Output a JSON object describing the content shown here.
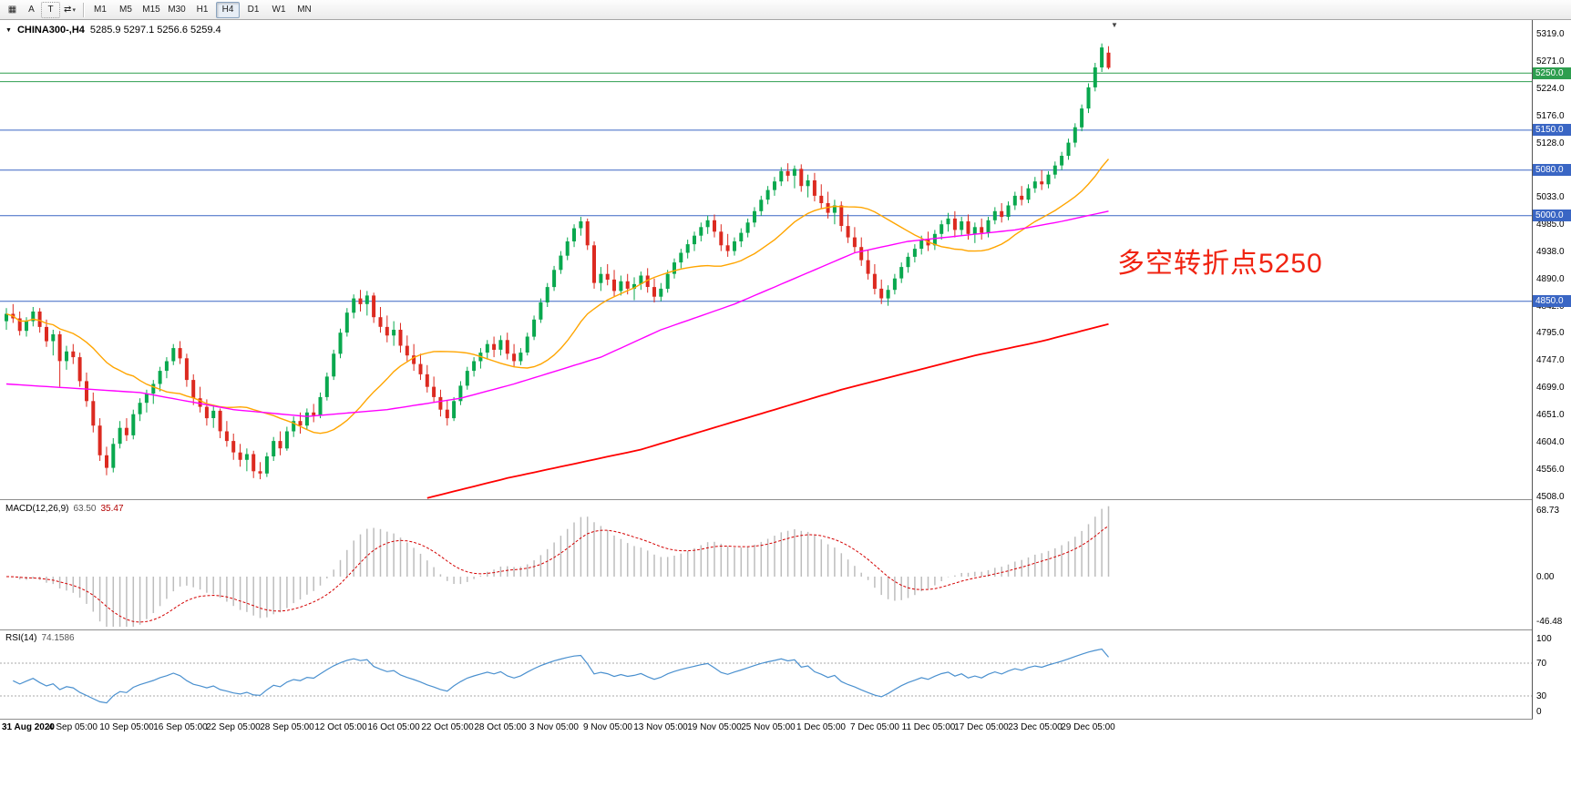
{
  "toolbar": {
    "window_button_icon": "▦",
    "a_label": "A",
    "t_label": "T",
    "cycle_icon": "⇄",
    "dropdown_icon": "▾",
    "timeframes": [
      "M1",
      "M5",
      "M15",
      "M30",
      "H1",
      "H4",
      "D1",
      "W1",
      "MN"
    ],
    "active_timeframe": "H4"
  },
  "chart": {
    "symbol_label": "CHINA300-,H4",
    "ohlc_values": "5285.9 5297.1 5256.6 5259.4",
    "shift_marker": "▼",
    "annotation": {
      "text": "多空转折点5250",
      "color": "#f02311"
    },
    "colors": {
      "up": "#09a84e",
      "down": "#dc2a20"
    },
    "levels": [
      {
        "price": 5250,
        "color": "#2e9e4f"
      },
      {
        "price": 5235,
        "color": "#2e9e4f"
      },
      {
        "price": 5150,
        "color": "#3a66c4"
      },
      {
        "price": 5080,
        "color": "#3a66c4"
      },
      {
        "price": 5000,
        "color": "#3a66c4"
      },
      {
        "price": 4850,
        "color": "#3a66c4"
      }
    ],
    "price_axis": {
      "ticks": [
        "5319.0",
        "5271.0",
        "5224.0",
        "5176.0",
        "5128.0",
        "5080.0",
        "5033.0",
        "4985.0",
        "4938.0",
        "4890.0",
        "4842.0",
        "4795.0",
        "4747.0",
        "4699.0",
        "4651.0",
        "4604.0",
        "4556.0",
        "4508.0"
      ],
      "badges": [
        {
          "text": "5250.0",
          "price": 5250,
          "bg": "#2e9e4f"
        },
        {
          "text": "5150.0",
          "price": 5150,
          "bg": "#3a66c4"
        },
        {
          "text": "5080.0",
          "price": 5080,
          "bg": "#3a66c4"
        },
        {
          "text": "5000.0",
          "price": 5000,
          "bg": "#3a66c4"
        },
        {
          "text": "4850.0",
          "price": 4850,
          "bg": "#3a66c4"
        }
      ]
    },
    "ma": {
      "fast": {
        "period": 20,
        "color": "#ffa500"
      },
      "mid": {
        "color": "#ff00ff",
        "points": [
          [
            0,
            4705
          ],
          [
            20,
            4690
          ],
          [
            34,
            4660
          ],
          [
            45,
            4648
          ],
          [
            57,
            4660
          ],
          [
            68,
            4680
          ],
          [
            76,
            4705
          ],
          [
            89,
            4752
          ],
          [
            98,
            4800
          ],
          [
            109,
            4845
          ],
          [
            119,
            4895
          ],
          [
            127,
            4935
          ],
          [
            135,
            4955
          ],
          [
            143,
            4965
          ],
          [
            151,
            4975
          ],
          [
            158,
            4990
          ],
          [
            165,
            5008
          ]
        ]
      },
      "slow": {
        "color": "#ff0000",
        "points": [
          [
            63,
            4505
          ],
          [
            75,
            4540
          ],
          [
            85,
            4565
          ],
          [
            95,
            4590
          ],
          [
            105,
            4625
          ],
          [
            115,
            4660
          ],
          [
            125,
            4695
          ],
          [
            135,
            4725
          ],
          [
            145,
            4755
          ],
          [
            155,
            4780
          ],
          [
            165,
            4810
          ]
        ]
      }
    },
    "time_labels": [
      {
        "i": 2,
        "t": "31 Aug 2020"
      },
      {
        "i": 10,
        "t": "4 Sep 05:00"
      },
      {
        "i": 18,
        "t": "10 Sep 05:00"
      },
      {
        "i": 26,
        "t": "16 Sep 05:00"
      },
      {
        "i": 34,
        "t": "22 Sep 05:00"
      },
      {
        "i": 42,
        "t": "28 Sep 05:00"
      },
      {
        "i": 50,
        "t": "12 Oct 05:00"
      },
      {
        "i": 58,
        "t": "16 Oct 05:00"
      },
      {
        "i": 66,
        "t": "22 Oct 05:00"
      },
      {
        "i": 74,
        "t": "28 Oct 05:00"
      },
      {
        "i": 82,
        "t": "3 Nov 05:00"
      },
      {
        "i": 90,
        "t": "9 Nov 05:00"
      },
      {
        "i": 98,
        "t": "13 Nov 05:00"
      },
      {
        "i": 106,
        "t": "19 Nov 05:00"
      },
      {
        "i": 114,
        "t": "25 Nov 05:00"
      },
      {
        "i": 122,
        "t": "1 Dec 05:00"
      },
      {
        "i": 130,
        "t": "7 Dec 05:00"
      },
      {
        "i": 138,
        "t": "11 Dec 05:00"
      },
      {
        "i": 146,
        "t": "17 Dec 05:00"
      },
      {
        "i": 154,
        "t": "23 Dec 05:00"
      },
      {
        "i": 162,
        "t": "29 Dec 05:00"
      }
    ],
    "candles": [
      [
        4815,
        4838,
        4800,
        4828
      ],
      [
        4828,
        4845,
        4812,
        4820
      ],
      [
        4820,
        4832,
        4790,
        4798
      ],
      [
        4798,
        4822,
        4788,
        4815
      ],
      [
        4815,
        4840,
        4806,
        4832
      ],
      [
        4832,
        4838,
        4795,
        4805
      ],
      [
        4805,
        4818,
        4770,
        4780
      ],
      [
        4780,
        4800,
        4755,
        4792
      ],
      [
        4792,
        4798,
        4700,
        4745
      ],
      [
        4745,
        4772,
        4730,
        4762
      ],
      [
        4762,
        4775,
        4740,
        4752
      ],
      [
        4752,
        4760,
        4700,
        4710
      ],
      [
        4710,
        4725,
        4665,
        4675
      ],
      [
        4675,
        4690,
        4620,
        4632
      ],
      [
        4632,
        4645,
        4570,
        4580
      ],
      [
        4580,
        4595,
        4545,
        4558
      ],
      [
        4558,
        4610,
        4550,
        4600
      ],
      [
        4600,
        4640,
        4592,
        4628
      ],
      [
        4628,
        4645,
        4605,
        4615
      ],
      [
        4615,
        4660,
        4608,
        4652
      ],
      [
        4652,
        4680,
        4640,
        4672
      ],
      [
        4672,
        4695,
        4655,
        4688
      ],
      [
        4688,
        4712,
        4670,
        4705
      ],
      [
        4705,
        4735,
        4692,
        4728
      ],
      [
        4728,
        4752,
        4715,
        4745
      ],
      [
        4745,
        4775,
        4738,
        4768
      ],
      [
        4768,
        4780,
        4740,
        4750
      ],
      [
        4750,
        4758,
        4700,
        4712
      ],
      [
        4712,
        4722,
        4668,
        4680
      ],
      [
        4680,
        4700,
        4655,
        4665
      ],
      [
        4665,
        4678,
        4632,
        4645
      ],
      [
        4645,
        4668,
        4628,
        4658
      ],
      [
        4658,
        4662,
        4610,
        4622
      ],
      [
        4622,
        4640,
        4595,
        4605
      ],
      [
        4605,
        4618,
        4572,
        4585
      ],
      [
        4585,
        4600,
        4560,
        4572
      ],
      [
        4572,
        4592,
        4552,
        4582
      ],
      [
        4582,
        4588,
        4540,
        4552
      ],
      [
        4552,
        4568,
        4538,
        4548
      ],
      [
        4548,
        4585,
        4542,
        4578
      ],
      [
        4578,
        4612,
        4570,
        4605
      ],
      [
        4605,
        4622,
        4580,
        4592
      ],
      [
        4592,
        4630,
        4588,
        4622
      ],
      [
        4622,
        4648,
        4612,
        4640
      ],
      [
        4640,
        4655,
        4618,
        4632
      ],
      [
        4632,
        4662,
        4625,
        4655
      ],
      [
        4655,
        4670,
        4638,
        4650
      ],
      [
        4650,
        4690,
        4645,
        4682
      ],
      [
        4682,
        4725,
        4676,
        4718
      ],
      [
        4718,
        4765,
        4712,
        4758
      ],
      [
        4758,
        4802,
        4750,
        4795
      ],
      [
        4795,
        4838,
        4788,
        4830
      ],
      [
        4830,
        4862,
        4820,
        4855
      ],
      [
        4855,
        4870,
        4832,
        4845
      ],
      [
        4845,
        4868,
        4825,
        4860
      ],
      [
        4860,
        4865,
        4812,
        4822
      ],
      [
        4822,
        4840,
        4795,
        4805
      ],
      [
        4805,
        4825,
        4778,
        4790
      ],
      [
        4790,
        4815,
        4772,
        4800
      ],
      [
        4800,
        4812,
        4760,
        4772
      ],
      [
        4772,
        4790,
        4745,
        4755
      ],
      [
        4755,
        4775,
        4728,
        4740
      ],
      [
        4740,
        4758,
        4712,
        4722
      ],
      [
        4722,
        4738,
        4690,
        4700
      ],
      [
        4700,
        4718,
        4672,
        4682
      ],
      [
        4682,
        4695,
        4648,
        4660
      ],
      [
        4660,
        4676,
        4632,
        4645
      ],
      [
        4645,
        4682,
        4640,
        4675
      ],
      [
        4675,
        4710,
        4668,
        4702
      ],
      [
        4702,
        4735,
        4695,
        4728
      ],
      [
        4728,
        4752,
        4718,
        4745
      ],
      [
        4745,
        4768,
        4732,
        4760
      ],
      [
        4760,
        4782,
        4748,
        4775
      ],
      [
        4775,
        4788,
        4752,
        4765
      ],
      [
        4765,
        4790,
        4755,
        4782
      ],
      [
        4782,
        4795,
        4748,
        4758
      ],
      [
        4758,
        4775,
        4735,
        4745
      ],
      [
        4745,
        4768,
        4738,
        4760
      ],
      [
        4760,
        4795,
        4755,
        4788
      ],
      [
        4788,
        4825,
        4782,
        4818
      ],
      [
        4818,
        4855,
        4812,
        4848
      ],
      [
        4848,
        4882,
        4840,
        4875
      ],
      [
        4875,
        4912,
        4868,
        4905
      ],
      [
        4905,
        4938,
        4898,
        4930
      ],
      [
        4930,
        4962,
        4922,
        4955
      ],
      [
        4955,
        4985,
        4945,
        4978
      ],
      [
        4978,
        4998,
        4965,
        4990
      ],
      [
        4990,
        4995,
        4940,
        4948
      ],
      [
        4948,
        4955,
        4872,
        4882
      ],
      [
        4882,
        4910,
        4868,
        4898
      ],
      [
        4898,
        4915,
        4878,
        4888
      ],
      [
        4888,
        4905,
        4858,
        4868
      ],
      [
        4868,
        4895,
        4860,
        4885
      ],
      [
        4885,
        4898,
        4862,
        4872
      ],
      [
        4872,
        4892,
        4852,
        4880
      ],
      [
        4880,
        4902,
        4870,
        4895
      ],
      [
        4895,
        4908,
        4865,
        4875
      ],
      [
        4875,
        4890,
        4848,
        4858
      ],
      [
        4858,
        4882,
        4850,
        4872
      ],
      [
        4872,
        4905,
        4865,
        4898
      ],
      [
        4898,
        4925,
        4890,
        4918
      ],
      [
        4918,
        4942,
        4908,
        4935
      ],
      [
        4935,
        4958,
        4925,
        4950
      ],
      [
        4950,
        4972,
        4938,
        4965
      ],
      [
        4965,
        4988,
        4955,
        4980
      ],
      [
        4980,
        5000,
        4968,
        4992
      ],
      [
        4992,
        5002,
        4962,
        4972
      ],
      [
        4972,
        4985,
        4938,
        4948
      ],
      [
        4948,
        4968,
        4928,
        4938
      ],
      [
        4938,
        4962,
        4930,
        4955
      ],
      [
        4955,
        4978,
        4945,
        4970
      ],
      [
        4970,
        4995,
        4962,
        4988
      ],
      [
        4988,
        5015,
        4980,
        5008
      ],
      [
        5008,
        5035,
        5000,
        5028
      ],
      [
        5028,
        5052,
        5020,
        5045
      ],
      [
        5045,
        5068,
        5035,
        5060
      ],
      [
        5060,
        5085,
        5052,
        5078
      ],
      [
        5078,
        5092,
        5060,
        5070
      ],
      [
        5070,
        5088,
        5048,
        5082
      ],
      [
        5082,
        5090,
        5042,
        5052
      ],
      [
        5052,
        5072,
        5032,
        5062
      ],
      [
        5062,
        5075,
        5025,
        5035
      ],
      [
        5035,
        5055,
        5012,
        5022
      ],
      [
        5022,
        5042,
        4995,
        5005
      ],
      [
        5005,
        5028,
        4985,
        5018
      ],
      [
        5018,
        5025,
        4972,
        4982
      ],
      [
        4982,
        5002,
        4952,
        4962
      ],
      [
        4962,
        4980,
        4935,
        4945
      ],
      [
        4945,
        4962,
        4912,
        4922
      ],
      [
        4922,
        4940,
        4888,
        4898
      ],
      [
        4898,
        4915,
        4862,
        4872
      ],
      [
        4872,
        4888,
        4845,
        4855
      ],
      [
        4855,
        4878,
        4842,
        4870
      ],
      [
        4870,
        4898,
        4862,
        4890
      ],
      [
        4890,
        4918,
        4882,
        4910
      ],
      [
        4910,
        4935,
        4900,
        4928
      ],
      [
        4928,
        4950,
        4918,
        4942
      ],
      [
        4942,
        4965,
        4932,
        4958
      ],
      [
        4958,
        4972,
        4938,
        4948
      ],
      [
        4948,
        4975,
        4940,
        4968
      ],
      [
        4968,
        4992,
        4958,
        4985
      ],
      [
        4985,
        5005,
        4972,
        4995
      ],
      [
        4995,
        5008,
        4962,
        4975
      ],
      [
        4975,
        4998,
        4965,
        4990
      ],
      [
        4990,
        5002,
        4958,
        4968
      ],
      [
        4968,
        4988,
        4952,
        4980
      ],
      [
        4980,
        4995,
        4958,
        4970
      ],
      [
        4970,
        4998,
        4962,
        4992
      ],
      [
        4992,
        5015,
        4985,
        5008
      ],
      [
        5008,
        5022,
        4988,
        4998
      ],
      [
        4998,
        5025,
        4992,
        5018
      ],
      [
        5018,
        5042,
        5010,
        5035
      ],
      [
        5035,
        5052,
        5018,
        5028
      ],
      [
        5028,
        5055,
        5022,
        5048
      ],
      [
        5048,
        5068,
        5040,
        5060
      ],
      [
        5060,
        5080,
        5045,
        5055
      ],
      [
        5055,
        5078,
        5048,
        5072
      ],
      [
        5072,
        5095,
        5065,
        5088
      ],
      [
        5088,
        5112,
        5080,
        5105
      ],
      [
        5105,
        5135,
        5098,
        5128
      ],
      [
        5128,
        5162,
        5120,
        5155
      ],
      [
        5155,
        5195,
        5148,
        5188
      ],
      [
        5188,
        5232,
        5180,
        5225
      ],
      [
        5225,
        5268,
        5218,
        5260
      ],
      [
        5260,
        5302,
        5252,
        5295
      ],
      [
        5285.9,
        5297.1,
        5256.6,
        5259.4
      ]
    ]
  },
  "macd": {
    "name": "MACD(12,26,9)",
    "value1": "63.50",
    "value2": "35.47",
    "histogram_color": "#bdbdbd",
    "signal_color": "#d40000",
    "axis": [
      {
        "text": "68.73",
        "value": 68.73
      },
      {
        "text": "0.00",
        "value": 0
      },
      {
        "text": "-46.48",
        "value": -46.48
      }
    ]
  },
  "rsi": {
    "name": "RSI(14)",
    "value": "74.1586",
    "line_color": "#4a90cf",
    "levels": [
      70,
      30
    ],
    "axis": [
      {
        "text": "100",
        "value": 100
      },
      {
        "text": "70",
        "value": 70
      },
      {
        "text": "30",
        "value": 30
      },
      {
        "text": "0",
        "value": 0
      }
    ]
  }
}
